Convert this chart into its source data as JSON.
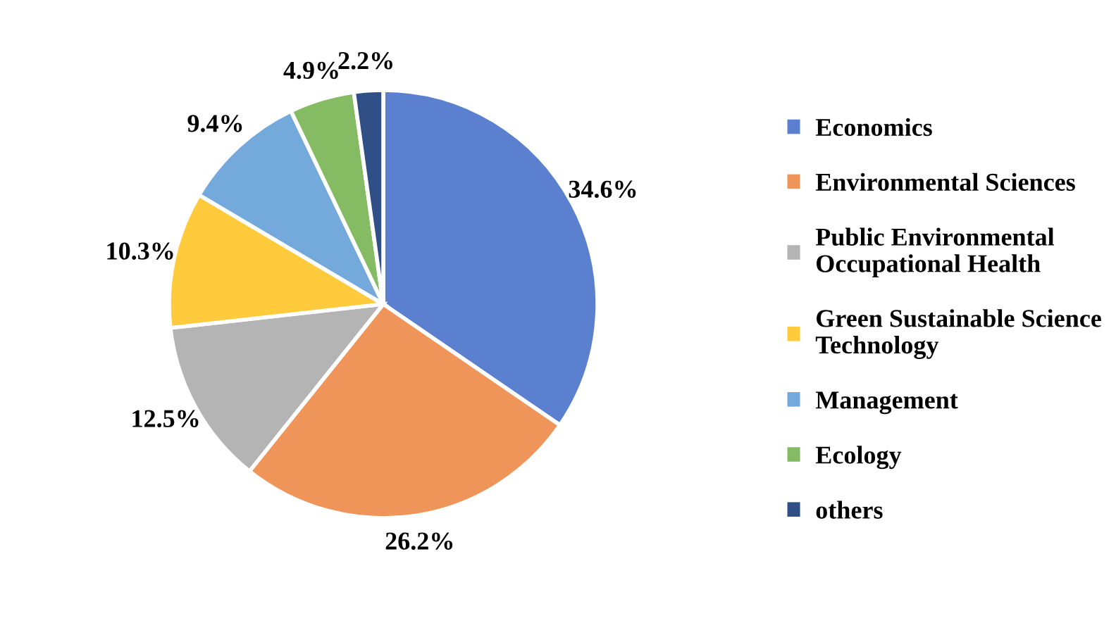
{
  "chart_data": {
    "type": "pie",
    "categories": [
      "Economics",
      "Environmental Sciences",
      "Public Environmental\nOccupational Health",
      "Green Sustainable Science\nTechnology",
      "Management",
      "Ecology",
      "others"
    ],
    "values": [
      34.6,
      26.2,
      12.5,
      10.3,
      9.4,
      4.9,
      2.2
    ],
    "value_labels": [
      "34.6%",
      "26.2%",
      "12.5%",
      "10.3%",
      "9.4%",
      "4.9%",
      "2.2%"
    ],
    "colors": [
      "#5b80cf",
      "#f0955a",
      "#b4b4b4",
      "#ffcb3d",
      "#74a9dc",
      "#85bb62",
      "#2f4f86"
    ],
    "legend": "right"
  }
}
